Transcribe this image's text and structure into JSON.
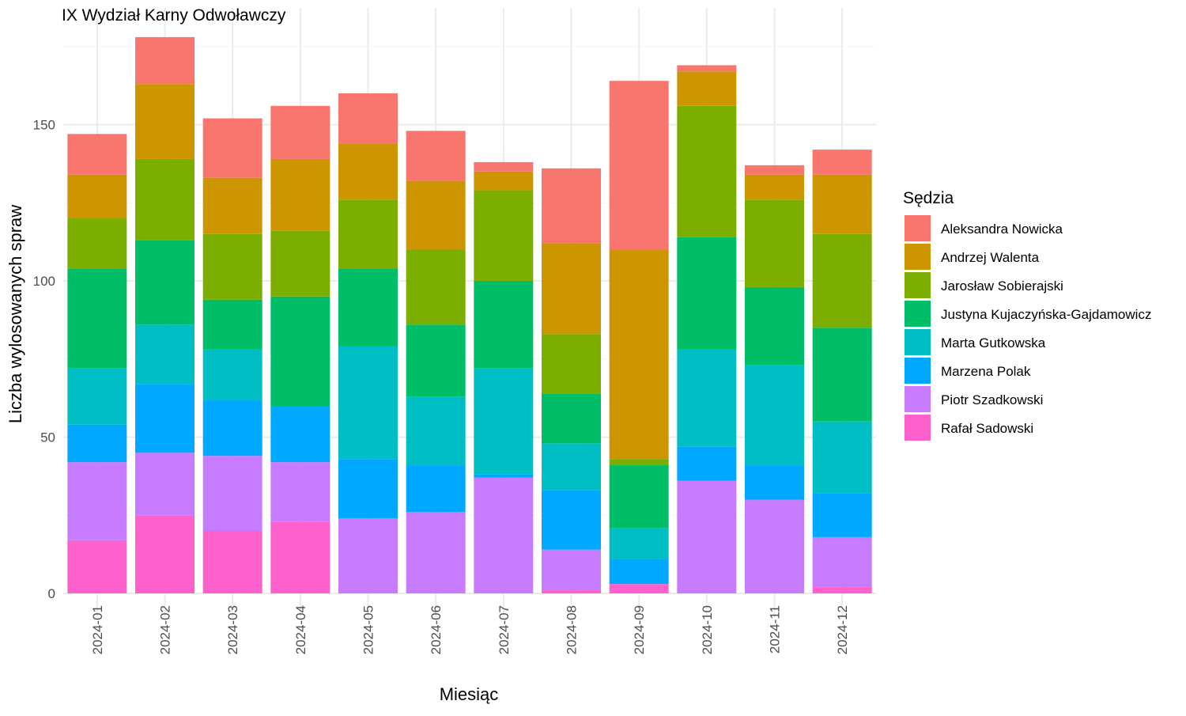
{
  "chart_data": {
    "type": "bar",
    "stacked": true,
    "title": "IX Wydział Karny Odwoławczy",
    "xlabel": "Miesiąc",
    "ylabel": "Liczba wylosowanych spraw",
    "ylim": [
      0,
      180
    ],
    "yticks": [
      0,
      50,
      100,
      150
    ],
    "grid": true,
    "legend": {
      "title": "Sędzia",
      "placement": "right"
    },
    "categories": [
      "2024-01",
      "2024-02",
      "2024-03",
      "2024-04",
      "2024-05",
      "2024-06",
      "2024-07",
      "2024-08",
      "2024-09",
      "2024-10",
      "2024-11",
      "2024-12"
    ],
    "series": [
      {
        "name": "Aleksandra Nowicka",
        "color": "#F8766D",
        "values": [
          13,
          15,
          19,
          17,
          16,
          16,
          3,
          24,
          54,
          2,
          3,
          8
        ]
      },
      {
        "name": "Andrzej Walenta",
        "color": "#CD9600",
        "values": [
          14,
          24,
          18,
          23,
          18,
          22,
          6,
          29,
          67,
          11,
          8,
          19
        ]
      },
      {
        "name": "Jarosław Sobierajski",
        "color": "#7CAE00",
        "values": [
          16,
          26,
          21,
          21,
          22,
          24,
          29,
          19,
          2,
          42,
          28,
          30
        ]
      },
      {
        "name": "Justyna Kujaczyńska-Gajdamowicz",
        "color": "#00BE67",
        "values": [
          32,
          27,
          16,
          35,
          25,
          23,
          28,
          16,
          20,
          36,
          25,
          30
        ]
      },
      {
        "name": "Marta Gutkowska",
        "color": "#00BFC4",
        "values": [
          18,
          19,
          16,
          0,
          36,
          22,
          34,
          15,
          10,
          31,
          32,
          23
        ]
      },
      {
        "name": "Marzena Polak",
        "color": "#00A9FF",
        "values": [
          12,
          22,
          18,
          18,
          19,
          15,
          1,
          19,
          8,
          11,
          11,
          14
        ]
      },
      {
        "name": "Piotr Szadkowski",
        "color": "#C77CFF",
        "values": [
          25,
          20,
          24,
          19,
          24,
          26,
          37,
          13,
          0,
          36,
          30,
          16
        ]
      },
      {
        "name": "Rafał Sadowski",
        "color": "#FF61CC",
        "values": [
          17,
          25,
          20,
          23,
          0,
          0,
          0,
          1,
          3,
          0,
          0,
          2
        ]
      }
    ]
  }
}
